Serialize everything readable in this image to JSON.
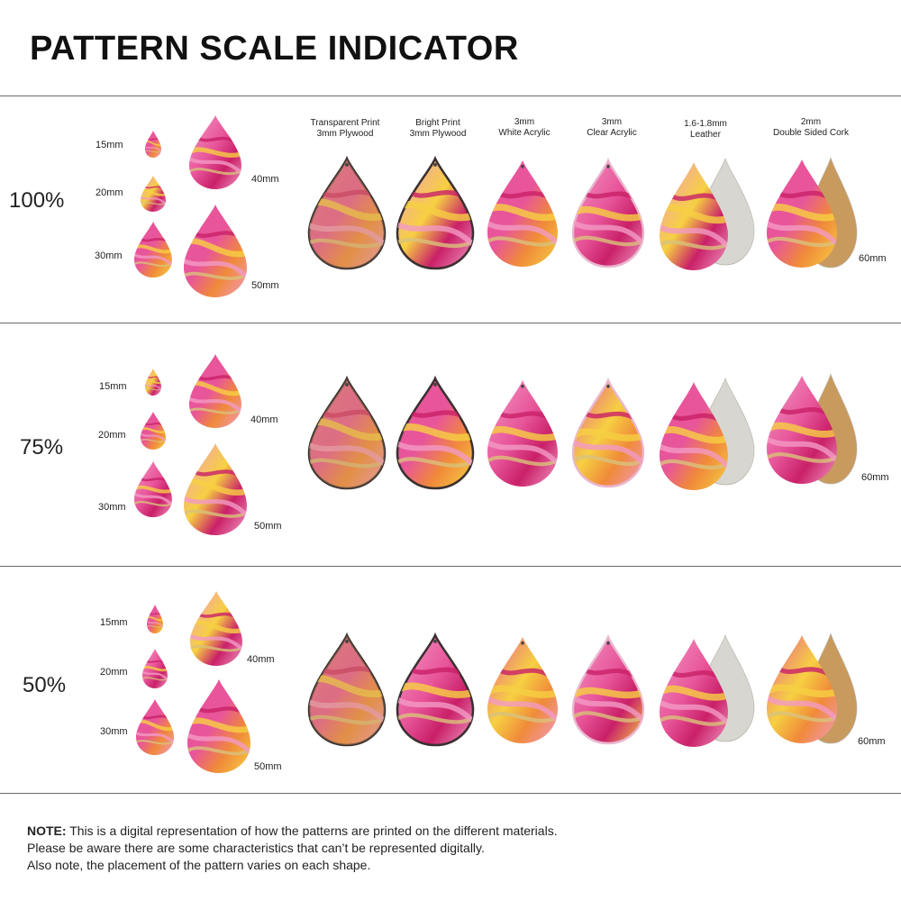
{
  "title": "PATTERN SCALE INDICATOR",
  "size_labels": {
    "s15": "15mm",
    "s20": "20mm",
    "s30": "30mm",
    "s40": "40mm",
    "s50": "50mm",
    "s60": "60mm"
  },
  "materials": [
    {
      "line1": "Transparent Print",
      "line2": "3mm Plywood"
    },
    {
      "line1": "Bright Print",
      "line2": "3mm Plywood"
    },
    {
      "line1": "3mm",
      "line2": "White Acrylic"
    },
    {
      "line1": "3mm",
      "line2": "Clear Acrylic"
    },
    {
      "line1": "1.6-1.8mm",
      "line2": "Leather"
    },
    {
      "line1": "2mm",
      "line2": "Double Sided Cork"
    }
  ],
  "sections": [
    {
      "scale": "100%"
    },
    {
      "scale": "75%"
    },
    {
      "scale": "50%"
    }
  ],
  "note": {
    "bold": "NOTE:",
    "line1": " This is a digital representation of how the patterns are printed on the different materials.",
    "line2": "Please be aware there are some characteristics that can’t be represented digitally.",
    "line3": "Also note, the placement of the pattern varies on each shape."
  },
  "colors": {
    "pink": "#e8559a",
    "pink_light": "#f29ac4",
    "magenta": "#c92068",
    "yellow": "#f6d042",
    "orange": "#f08a3a",
    "gold": "#d9c27a",
    "wood_edge": "#3b3030",
    "leather_back": "#d8d6d0",
    "cork_back": "#c99a5e"
  }
}
